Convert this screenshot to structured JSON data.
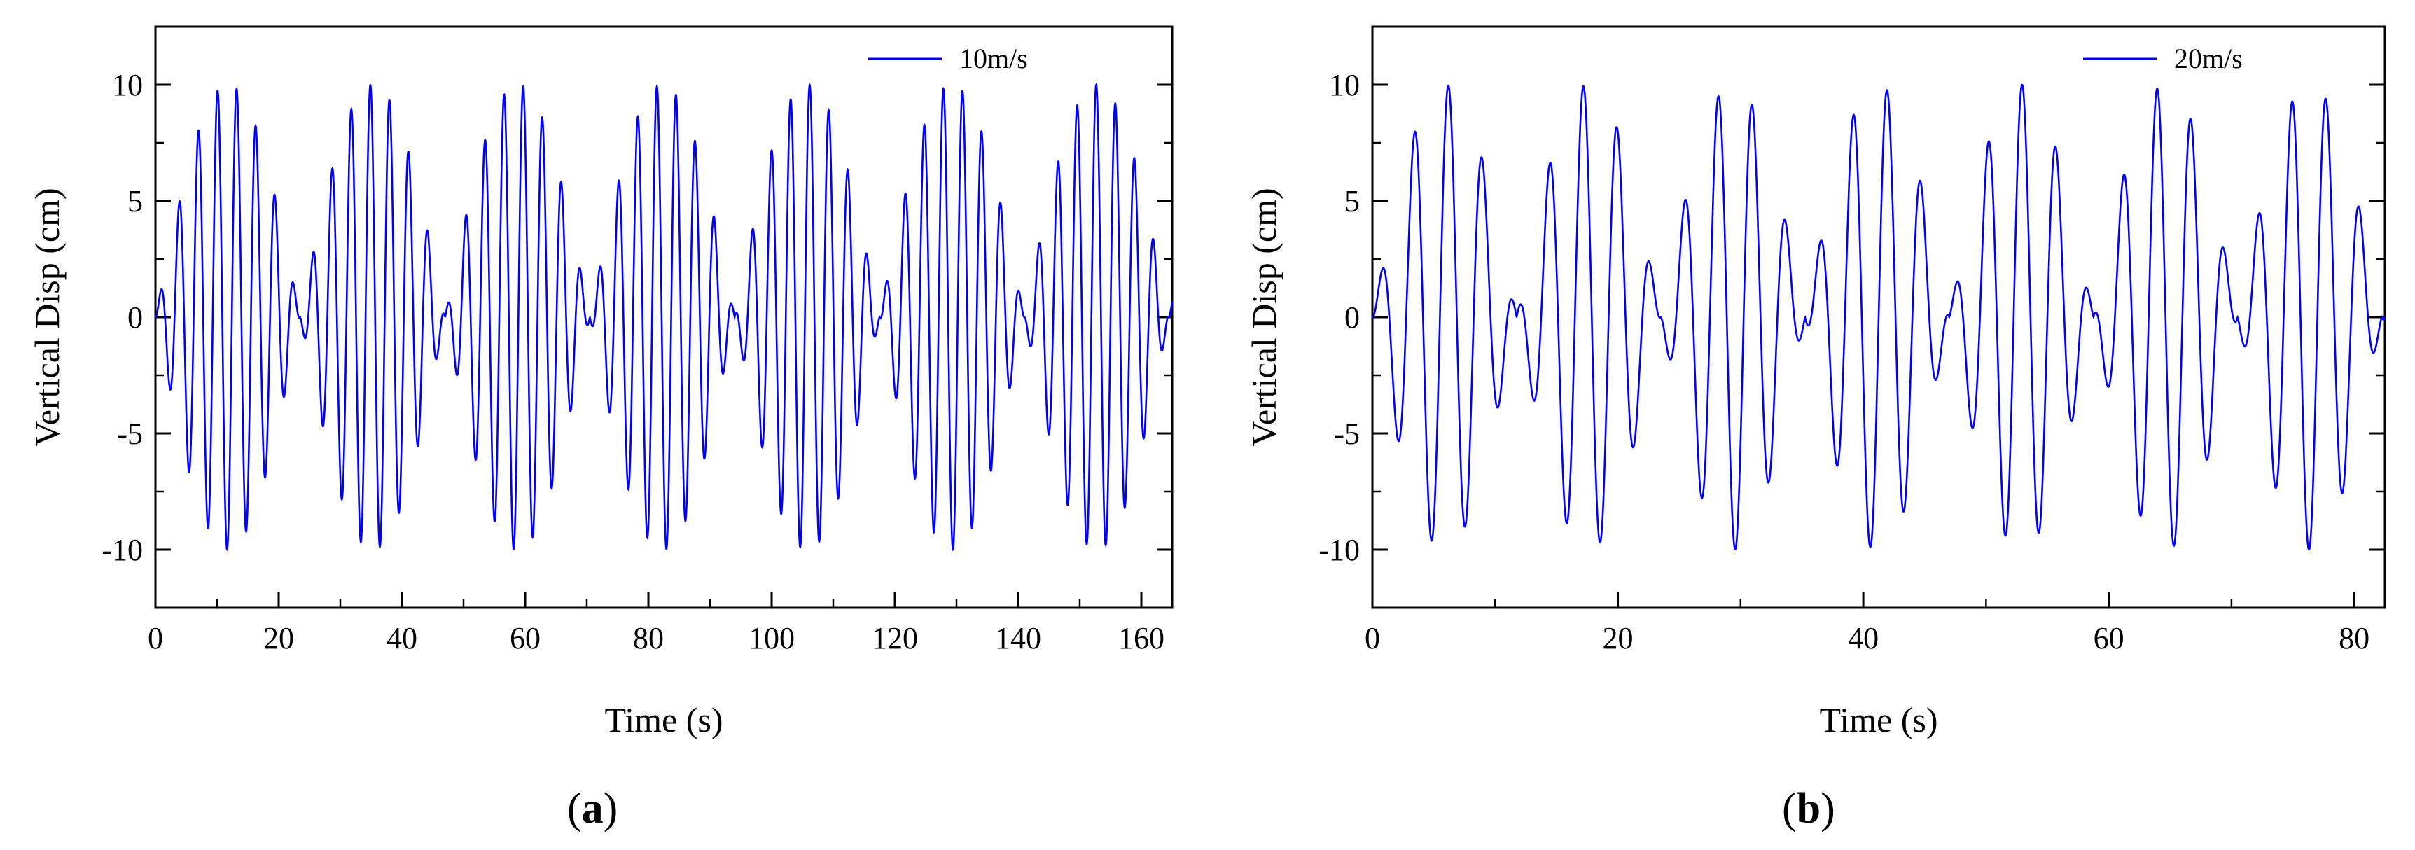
{
  "chart_data": [
    {
      "type": "line",
      "panel_label": "a",
      "xlabel": "Time (s)",
      "ylabel": "Vertical Disp (cm)",
      "xlim": [
        0,
        165
      ],
      "ylim": [
        -12.5,
        12.5
      ],
      "xticks": [
        0,
        20,
        40,
        60,
        80,
        100,
        120,
        140,
        160
      ],
      "yticks": [
        -10,
        -5,
        0,
        5,
        10
      ],
      "legend_position": "top-right",
      "series": [
        {
          "name": "10m/s",
          "color": "#0000ff",
          "signal": {
            "amplitude_cm": 10,
            "carrier_period_s": 3.1,
            "beat_period_s": 23.5,
            "duration_s": 165
          }
        }
      ]
    },
    {
      "type": "line",
      "panel_label": "b",
      "xlabel": "Time (s)",
      "ylabel": "Vertical Disp (cm)",
      "xlim": [
        0,
        82.5
      ],
      "ylim": [
        -12.5,
        12.5
      ],
      "xticks": [
        0,
        20,
        40,
        60,
        80
      ],
      "yticks": [
        -10,
        -5,
        0,
        5,
        10
      ],
      "legend_position": "top-right",
      "series": [
        {
          "name": "20m/s",
          "color": "#0000ff",
          "signal": {
            "amplitude_cm": 10,
            "carrier_period_s": 2.75,
            "beat_period_s": 11.75,
            "duration_s": 82.5
          }
        }
      ]
    }
  ]
}
